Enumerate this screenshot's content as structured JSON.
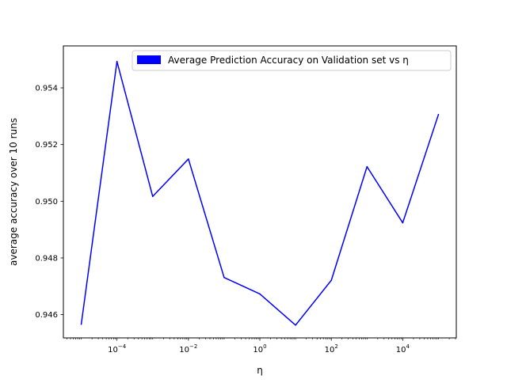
{
  "chart_data": {
    "type": "line",
    "xscale": "log",
    "xlabel": "η",
    "ylabel": "average accuracy over 10 runs",
    "xlim": [
      3.16e-06,
      316000.0
    ],
    "ylim": [
      0.94518,
      0.95548
    ],
    "x_ticks": [
      {
        "value": 0.0001,
        "base": "10",
        "exp": "−4"
      },
      {
        "value": 0.01,
        "base": "10",
        "exp": "−2"
      },
      {
        "value": 1,
        "base": "10",
        "exp": "0"
      },
      {
        "value": 100,
        "base": "10",
        "exp": "2"
      },
      {
        "value": 10000,
        "base": "10",
        "exp": "4"
      }
    ],
    "y_ticks": [
      {
        "value": 0.946,
        "label": "0.946"
      },
      {
        "value": 0.948,
        "label": "0.948"
      },
      {
        "value": 0.95,
        "label": "0.950"
      },
      {
        "value": 0.952,
        "label": "0.952"
      },
      {
        "value": 0.954,
        "label": "0.954"
      }
    ],
    "series": [
      {
        "name": "Average Prediction Accuracy on Validation set vs η",
        "color": "#0000ff",
        "x": [
          1e-05,
          0.0001,
          0.001,
          0.01,
          0.1,
          1,
          10,
          100,
          1000,
          10000,
          100000
        ],
        "y": [
          0.94566,
          0.95493,
          0.95017,
          0.95149,
          0.94731,
          0.94673,
          0.94563,
          0.94721,
          0.95122,
          0.94924,
          0.95306
        ]
      }
    ],
    "legend": "top-right",
    "legend_patch_color": "#0000ff",
    "grid": false
  }
}
